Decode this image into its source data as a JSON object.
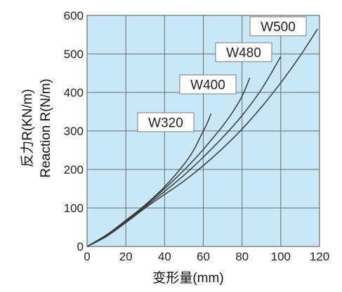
{
  "colors": {
    "plot_background": "#c9e8f7",
    "grid": "#6b6b6b",
    "curve": "#3a3a3a",
    "label_box_fill": "#ffffff",
    "label_box_border": "#7a7a7a"
  },
  "chart_data": {
    "type": "line",
    "title": "",
    "xlabel": "变形量(mm)",
    "ylabel_cn": "反力R(KN/m)",
    "ylabel_en": "Reaction R(N/m)",
    "xlim": [
      0,
      120
    ],
    "ylim": [
      0,
      600
    ],
    "xticks": [
      0,
      20,
      40,
      60,
      80,
      100,
      120
    ],
    "yticks": [
      0,
      100,
      200,
      300,
      400,
      500,
      600
    ],
    "grid": true,
    "legend": "inline labels at curve ends",
    "series": [
      {
        "name": "W320",
        "x": [
          0,
          10,
          20,
          30,
          40,
          50,
          55,
          58,
          60,
          62,
          64
        ],
        "y": [
          0,
          30,
          68,
          108,
          155,
          213,
          250,
          280,
          300,
          320,
          345
        ]
      },
      {
        "name": "W400",
        "x": [
          0,
          10,
          20,
          30,
          40,
          50,
          55,
          60,
          65,
          70,
          75,
          80,
          84
        ],
        "y": [
          0,
          30,
          67,
          106,
          150,
          198,
          224,
          252,
          282,
          313,
          348,
          390,
          438
        ]
      },
      {
        "name": "W480",
        "x": [
          0,
          10,
          20,
          30,
          40,
          50,
          60,
          70,
          80,
          90,
          100
        ],
        "y": [
          0,
          28,
          65,
          103,
          143,
          185,
          232,
          283,
          340,
          408,
          493
        ]
      },
      {
        "name": "W500",
        "x": [
          0,
          10,
          20,
          30,
          40,
          50,
          60,
          70,
          80,
          90,
          100,
          110,
          119
        ],
        "y": [
          0,
          26,
          62,
          100,
          135,
          170,
          210,
          255,
          305,
          362,
          425,
          495,
          565
        ]
      }
    ]
  }
}
